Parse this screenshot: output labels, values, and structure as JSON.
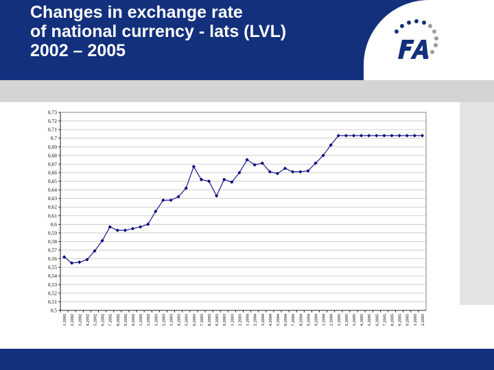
{
  "slide": {
    "title_lines": [
      "Changes in exchange rate",
      "of national currency - lats (LVL)",
      "2002 – 2005"
    ],
    "logo_text": "FA",
    "colors": {
      "header": "#12307c",
      "series": "#000080",
      "band": "#d4d4d4"
    }
  },
  "chart_data": {
    "type": "line",
    "title": "",
    "xlabel": "",
    "ylabel": "",
    "ylim": [
      0.5,
      0.73
    ],
    "yticks": [
      "0,73",
      "0,72",
      "0,71",
      "0,7",
      "0,69",
      "0,68",
      "0,67",
      "0,66",
      "0,65",
      "0,64",
      "0,63",
      "0,62",
      "0,61",
      "0,6",
      "0,59",
      "0,58",
      "0,57",
      "0,56",
      "0,55",
      "0,54",
      "0,53",
      "0,52",
      "0,51",
      "0,5"
    ],
    "grid": true,
    "legend": "none",
    "categories": [
      "02.01.2002",
      "01.02.2002",
      "01.03.2002",
      "02.04.2002",
      "01.05.2002",
      "01.06.2002",
      "01.07.2002",
      "01.08.2002",
      "02.09.2002",
      "01.10.2002",
      "01.11.2002",
      "02.12.2002",
      "02.01.2003",
      "01.02.2003",
      "01.03.2003",
      "01.04.2003",
      "02.05.2003",
      "01.06.2003",
      "01.07.2003",
      "01.08.2003",
      "01.09.2003",
      "01.10.2003",
      "01.11.2003",
      "01.12.2003",
      "03.01.2004",
      "01.02.2004",
      "01.03.2004",
      "01.04.2004",
      "05.05.2004",
      "01.06.2004",
      "01.07.2004",
      "02.08.2004",
      "01.09.2004",
      "01.10.2004",
      "01.11.2004",
      "01.12.2004",
      "01.01.2005",
      "02.02.2005",
      "01.03.2005",
      "01.04.2005",
      "01.05.2005",
      "01.06.2005",
      "01.07.2005",
      "01.08.2005",
      "01.09.2005",
      "01.10.2005",
      "01.11.2005",
      "01.12.2005"
    ],
    "series": [
      {
        "values": [
          0.562,
          0.555,
          0.556,
          0.559,
          0.569,
          0.581,
          0.597,
          0.593,
          0.593,
          0.595,
          0.597,
          0.6,
          0.615,
          0.628,
          0.628,
          0.632,
          0.642,
          0.667,
          0.652,
          0.65,
          0.633,
          0.652,
          0.649,
          0.66,
          0.675,
          0.669,
          0.671,
          0.661,
          0.659,
          0.665,
          0.661,
          0.661,
          0.662,
          0.671,
          0.68,
          0.692,
          0.703,
          0.703,
          0.703,
          0.703,
          0.703,
          0.703,
          0.703,
          0.703,
          0.703,
          0.703,
          0.703,
          0.703
        ]
      }
    ]
  }
}
